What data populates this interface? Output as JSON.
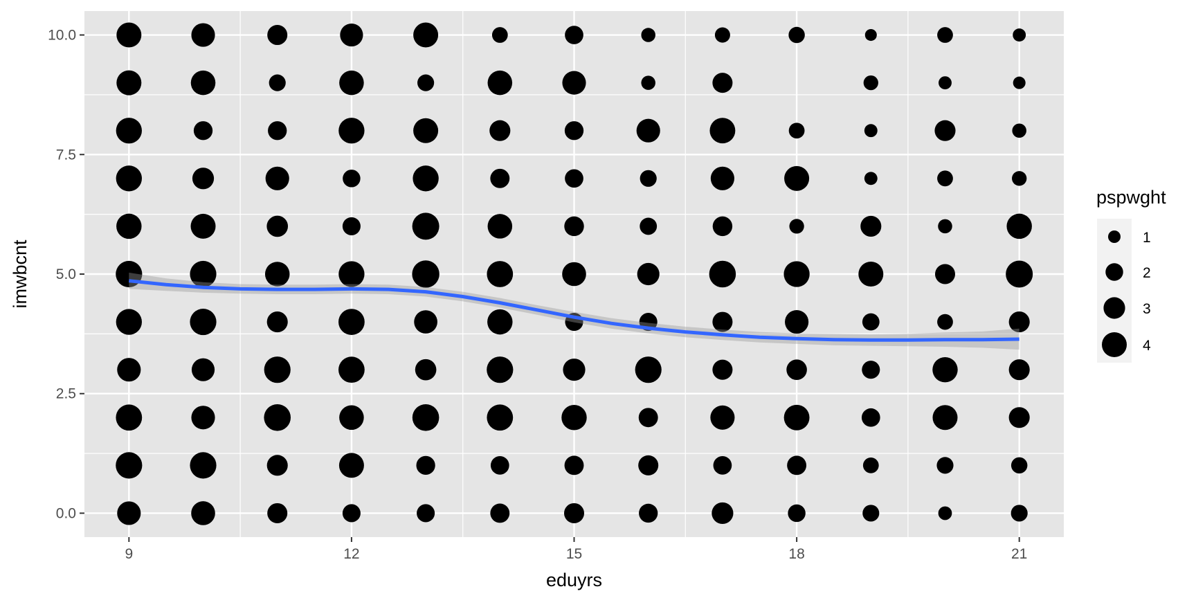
{
  "chart_data": {
    "type": "scatter",
    "subtype": "bubble scatter with smoothed trend line and confidence band",
    "xlabel": "eduyrs",
    "ylabel": "imwbcnt",
    "xlim": [
      8.4,
      21.6
    ],
    "ylim": [
      -0.5,
      10.5
    ],
    "x_ticks": [
      9,
      12,
      15,
      18,
      21
    ],
    "x_tick_labels": [
      "9",
      "12",
      "15",
      "18",
      "21"
    ],
    "y_ticks": [
      0,
      2.5,
      5,
      7.5,
      10
    ],
    "y_tick_labels": [
      "0.0",
      "2.5",
      "5.0",
      "7.5",
      "10.0"
    ],
    "grid": true,
    "panel_background": "#e5e5e5",
    "grid_color": "#ffffff",
    "point_color": "#000000",
    "size_legend": {
      "title": "pspwght",
      "position": "right",
      "entries": [
        {
          "label": "1",
          "value": 1
        },
        {
          "label": "2",
          "value": 2
        },
        {
          "label": "3",
          "value": 3
        },
        {
          "label": "4",
          "value": 4
        }
      ]
    },
    "points_x": [
      9,
      10,
      11,
      12,
      13,
      14,
      15,
      16,
      17,
      18,
      19,
      20,
      21
    ],
    "points_y": [
      10,
      9,
      8,
      7,
      6,
      5,
      4,
      3,
      2,
      1,
      0
    ],
    "point_sizes": [
      [
        4.0,
        3.6,
        2.6,
        3.4,
        4.0,
        1.6,
        2.2,
        1.3,
        1.5,
        1.7,
        0.9,
        1.6,
        1.1
      ],
      [
        4.0,
        3.9,
        1.8,
        3.9,
        1.8,
        3.9,
        3.6,
        1.3,
        2.6,
        null,
        1.4,
        1.1,
        1.0
      ],
      [
        4.3,
        2.3,
        2.3,
        4.3,
        4.0,
        2.8,
        2.3,
        3.6,
        4.2,
        1.6,
        1.1,
        2.8,
        1.3
      ],
      [
        4.3,
        3.0,
        3.6,
        2.0,
        4.3,
        2.4,
        2.2,
        1.8,
        3.6,
        4.0,
        1.1,
        1.6,
        1.4
      ],
      [
        4.1,
        4.0,
        2.9,
        2.1,
        4.7,
        3.9,
        2.5,
        1.9,
        2.5,
        1.4,
        2.8,
        1.3,
        4.1
      ],
      [
        4.5,
        4.5,
        3.9,
        4.3,
        4.8,
        4.4,
        3.7,
        3.2,
        4.6,
        4.3,
        4.0,
        2.6,
        4.7
      ],
      [
        4.3,
        4.5,
        2.8,
        4.4,
        3.5,
        4.1,
        2.1,
        2.1,
        2.6,
        3.6,
        1.9,
        1.6,
        2.8
      ],
      [
        3.6,
        3.4,
        4.5,
        4.4,
        2.9,
        4.5,
        3.2,
        4.5,
        2.6,
        2.7,
        2.1,
        4.1,
        2.8
      ],
      [
        4.4,
        3.6,
        4.6,
        3.9,
        4.6,
        4.4,
        4.1,
        2.4,
        3.8,
        4.2,
        2.2,
        4.0,
        2.8
      ],
      [
        4.5,
        4.5,
        2.8,
        4.0,
        2.3,
        2.2,
        2.4,
        2.6,
        2.2,
        2.4,
        1.6,
        1.8,
        1.7
      ],
      [
        3.6,
        3.7,
        2.6,
        2.1,
        2.1,
        2.4,
        2.6,
        2.3,
        3.0,
        2.0,
        1.8,
        1.2,
        1.8
      ]
    ],
    "smooth_line": {
      "color": "#3366ff",
      "x": [
        9,
        9.5,
        10,
        10.5,
        11,
        11.5,
        12,
        12.5,
        13,
        13.5,
        14,
        14.5,
        15,
        15.5,
        16,
        16.5,
        17,
        17.5,
        18,
        18.5,
        19,
        19.5,
        20,
        20.5,
        21
      ],
      "y": [
        4.86,
        4.78,
        4.72,
        4.69,
        4.68,
        4.68,
        4.69,
        4.68,
        4.63,
        4.53,
        4.4,
        4.25,
        4.1,
        3.97,
        3.87,
        3.79,
        3.73,
        3.68,
        3.65,
        3.63,
        3.62,
        3.62,
        3.63,
        3.63,
        3.64
      ],
      "band_halfwidth": [
        0.17,
        0.13,
        0.11,
        0.1,
        0.1,
        0.1,
        0.1,
        0.1,
        0.1,
        0.1,
        0.1,
        0.1,
        0.11,
        0.11,
        0.11,
        0.11,
        0.11,
        0.11,
        0.11,
        0.12,
        0.12,
        0.13,
        0.15,
        0.17,
        0.22
      ]
    }
  }
}
